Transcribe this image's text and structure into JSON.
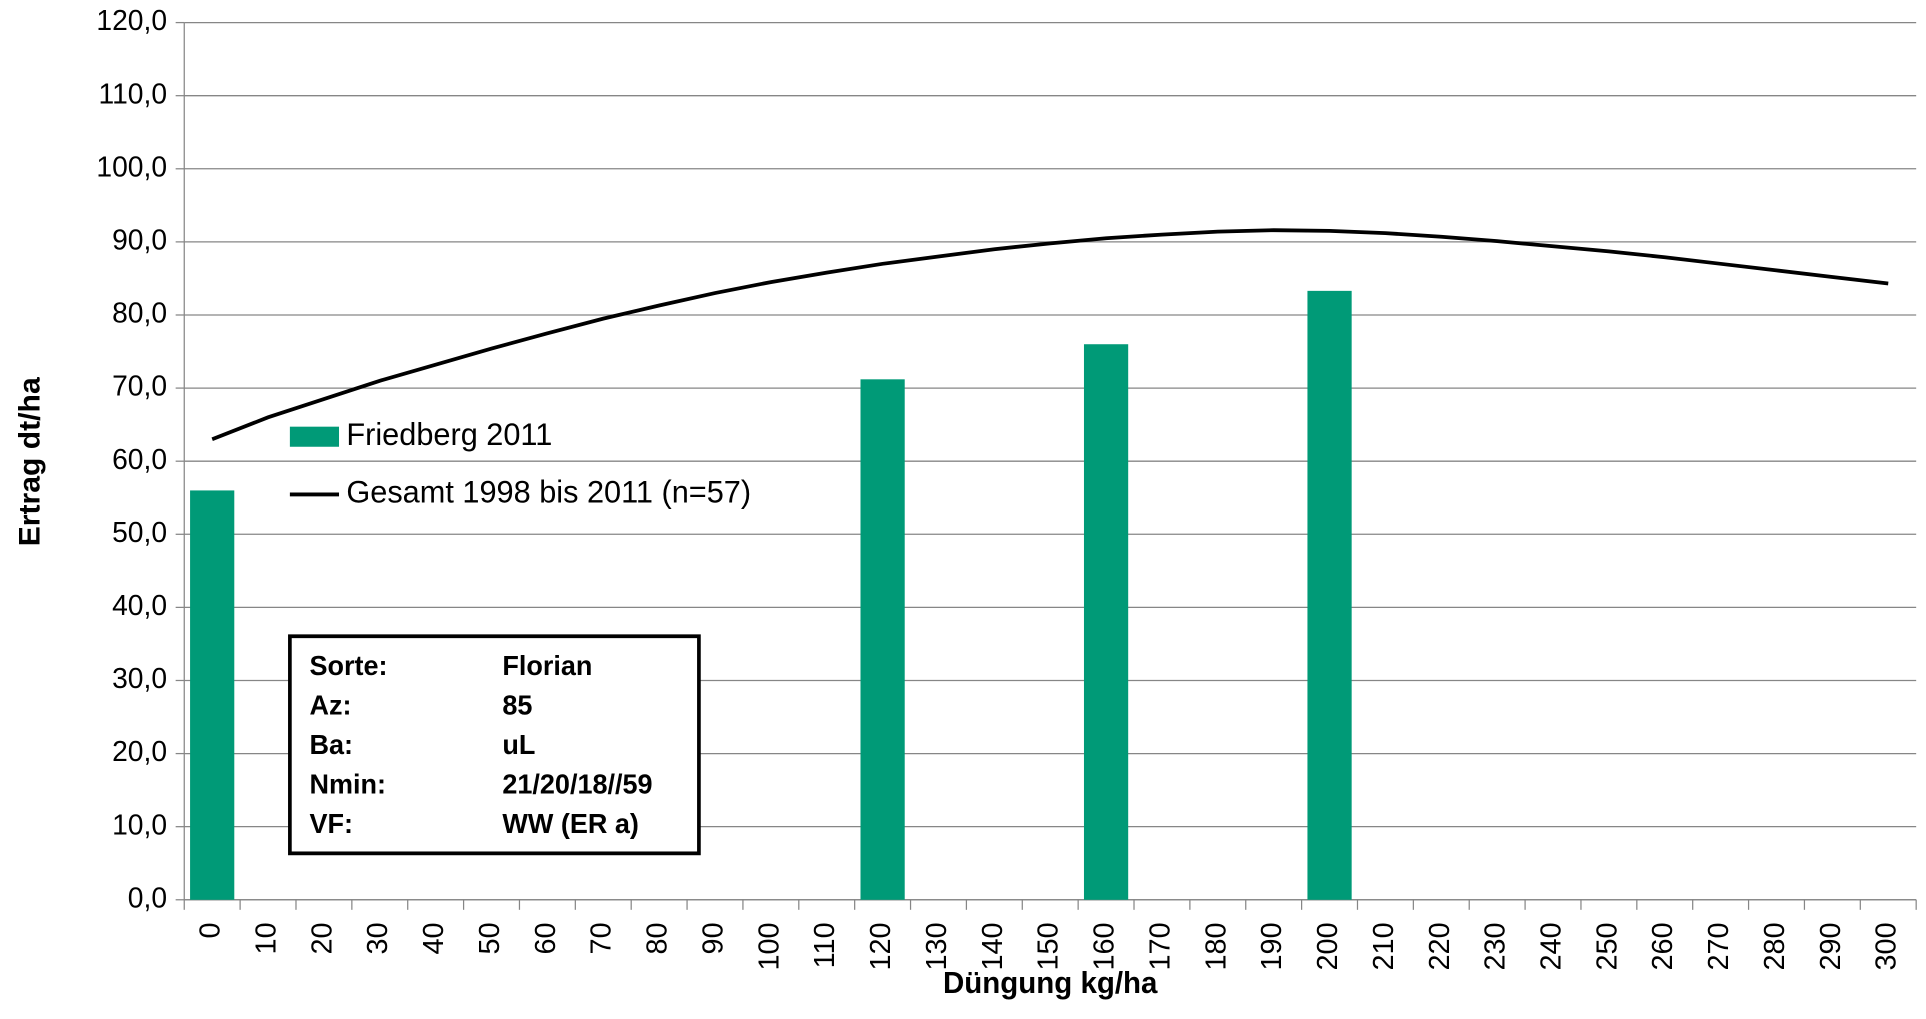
{
  "chart_data": {
    "type": "bar",
    "x_label": "Düngung kg/ha",
    "y_label": "Ertrag dt/ha",
    "categories": [
      "0",
      "10",
      "20",
      "30",
      "40",
      "50",
      "60",
      "70",
      "80",
      "90",
      "100",
      "110",
      "120",
      "130",
      "140",
      "150",
      "160",
      "170",
      "180",
      "190",
      "200",
      "210",
      "220",
      "230",
      "240",
      "250",
      "260",
      "270",
      "280",
      "290",
      "300"
    ],
    "series": [
      {
        "name": "Friedberg 2011",
        "type": "bar",
        "color": "#009a77",
        "values": [
          56.0,
          null,
          null,
          null,
          null,
          null,
          null,
          null,
          null,
          null,
          null,
          null,
          71.2,
          null,
          null,
          null,
          76.0,
          null,
          null,
          null,
          83.3,
          null,
          null,
          null,
          null,
          null,
          null,
          null,
          null,
          null,
          null
        ]
      },
      {
        "name": "Gesamt 1998 bis 2011 (n=57)",
        "type": "line",
        "color": "#000000",
        "values": [
          63.0,
          66.0,
          68.5,
          71.0,
          73.2,
          75.4,
          77.5,
          79.5,
          81.3,
          83.0,
          84.5,
          85.8,
          87.0,
          88.0,
          89.0,
          89.8,
          90.5,
          91.0,
          91.4,
          91.6,
          91.5,
          91.2,
          90.7,
          90.1,
          89.4,
          88.7,
          87.9,
          87.0,
          86.1,
          85.2,
          84.3
        ]
      }
    ],
    "ylim": [
      0,
      120
    ],
    "yticks": [
      {
        "value": 0,
        "label": "0,0"
      },
      {
        "value": 10,
        "label": "10,0"
      },
      {
        "value": 20,
        "label": "20,0"
      },
      {
        "value": 30,
        "label": "30,0"
      },
      {
        "value": 40,
        "label": "40,0"
      },
      {
        "value": 50,
        "label": "50,0"
      },
      {
        "value": 60,
        "label": "60,0"
      },
      {
        "value": 70,
        "label": "70,0"
      },
      {
        "value": 80,
        "label": "80,0"
      },
      {
        "value": 90,
        "label": "90,0"
      },
      {
        "value": 100,
        "label": "100,0"
      },
      {
        "value": 110,
        "label": "110,0"
      },
      {
        "value": 120,
        "label": "120,0"
      }
    ],
    "grid": true,
    "info_box": [
      [
        "Sorte:",
        "Florian"
      ],
      [
        "Az:",
        "85"
      ],
      [
        "Ba:",
        "uL"
      ],
      [
        "Nmin:",
        "21/20/18//59"
      ],
      [
        "VF:",
        "WW (ER a)"
      ]
    ]
  }
}
